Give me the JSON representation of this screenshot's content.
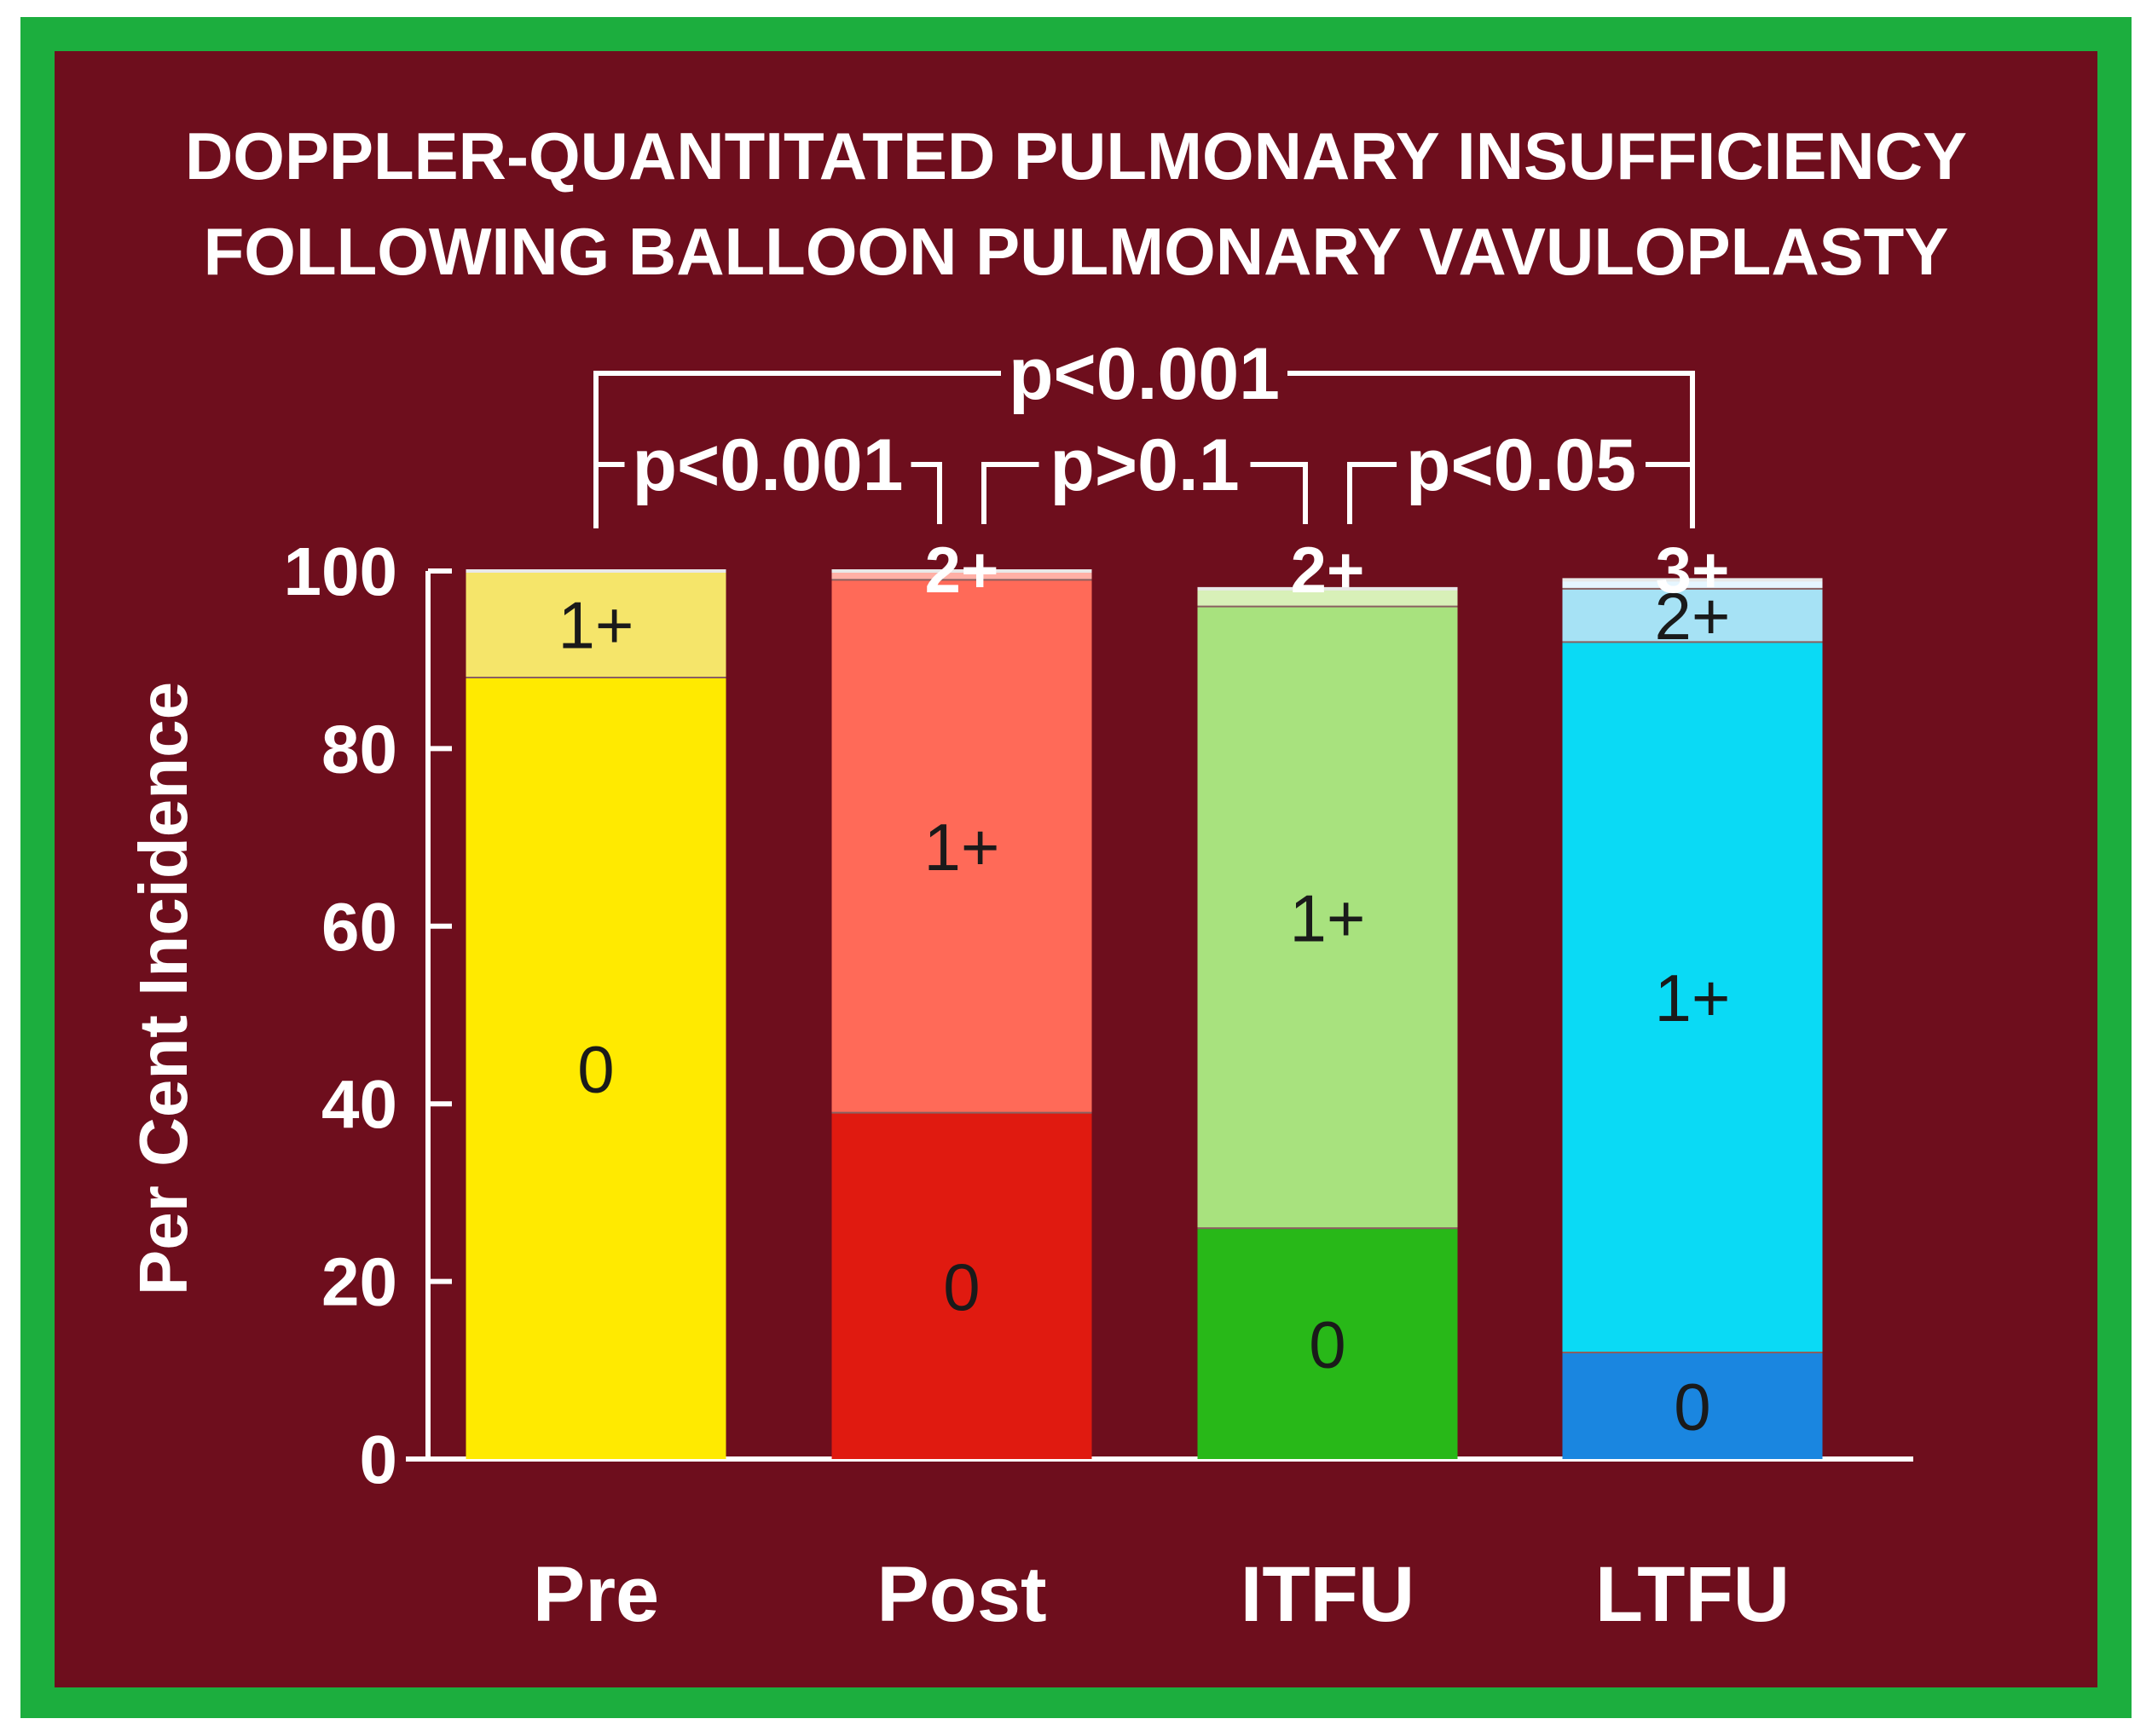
{
  "chart_data": {
    "type": "bar",
    "stacked": true,
    "title": "DOPPLER-QUANTITATED PULMONARY INSUFFICIENCY",
    "subtitle": "FOLLOWING BALLOON PULMONARY VAVULOPLASTY",
    "ylabel": "Per Cent Incidence",
    "xlabel": "",
    "ylim": [
      0,
      100
    ],
    "yticks": [
      "0",
      "20",
      "40",
      "60",
      "80",
      "100"
    ],
    "grid": false,
    "categories": [
      {
        "name": "Pre",
        "segments": [
          {
            "label": "0",
            "value": 88,
            "color": "#ffea00"
          },
          {
            "label": "1+",
            "value": 12,
            "color": "#f5e56a"
          }
        ],
        "top_label": ""
      },
      {
        "name": "Post",
        "segments": [
          {
            "label": "0",
            "value": 39,
            "color": "#e01a10"
          },
          {
            "label": "1+",
            "value": 60,
            "color": "#ff6a58"
          },
          {
            "label": "2+",
            "value": 1,
            "color": "#ffb0a6"
          }
        ],
        "top_label": "2+"
      },
      {
        "name": "ITFU",
        "segments": [
          {
            "label": "0",
            "value": 26,
            "color": "#28b818"
          },
          {
            "label": "1+",
            "value": 70,
            "color": "#a8e27e"
          },
          {
            "label": "2+",
            "value": 2,
            "color": "#d8f0b8"
          }
        ],
        "top_label": "2+"
      },
      {
        "name": "LTFU",
        "segments": [
          {
            "label": "0",
            "value": 12,
            "color": "#1a86e0"
          },
          {
            "label": "1+",
            "value": 80,
            "color": "#0adaf5"
          },
          {
            "label": "2+",
            "value": 6,
            "color": "#a6e2f5"
          },
          {
            "label": "3+",
            "value": 1,
            "color": "#e6f6ff"
          }
        ],
        "top_label": "3+"
      }
    ],
    "comparisons": [
      {
        "from": "Pre",
        "to": "LTFU",
        "label": "p<0.001"
      },
      {
        "from": "Pre",
        "to": "Post",
        "label": "p<0.001"
      },
      {
        "from": "Post",
        "to": "ITFU",
        "label": "p>0.1"
      },
      {
        "from": "ITFU",
        "to": "LTFU",
        "label": "p<0.05"
      }
    ]
  },
  "colors": {
    "frame": "#1cae3e",
    "background": "#6e0e1d",
    "text": "#ffffff"
  }
}
